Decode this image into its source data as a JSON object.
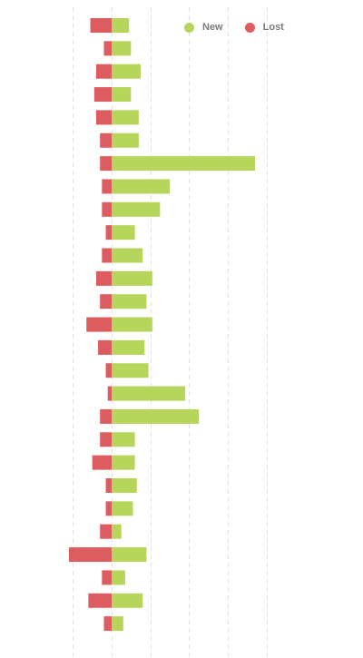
{
  "chart_data": {
    "type": "bar",
    "orientation": "horizontal",
    "stacked": "diverging",
    "xlabel": "",
    "ylabel": "",
    "grid": true,
    "legend_position": "top-right",
    "series": [
      {
        "name": "New",
        "color": "#b5d65a",
        "values": [
          4.5,
          5,
          7.5,
          5,
          7,
          7,
          37,
          15,
          12.5,
          6,
          8,
          10.5,
          9,
          10.5,
          8.5,
          9.5,
          19,
          22.5,
          6,
          6,
          6.5,
          5.5,
          2.5,
          9,
          3.5,
          8,
          3
        ]
      },
      {
        "name": "Lost",
        "color": "#dc5c5f",
        "values": [
          -5.5,
          -2,
          -4,
          -4.5,
          -4,
          -3,
          -3,
          -2.5,
          -2.5,
          -1.5,
          -2.5,
          -4,
          -3,
          -6.5,
          -3.5,
          -1.5,
          -1,
          -3,
          -3,
          -5,
          -1.5,
          -1.5,
          -3,
          -11,
          -2.5,
          -6,
          -2
        ]
      }
    ],
    "xlim": [
      -10,
      40
    ]
  }
}
